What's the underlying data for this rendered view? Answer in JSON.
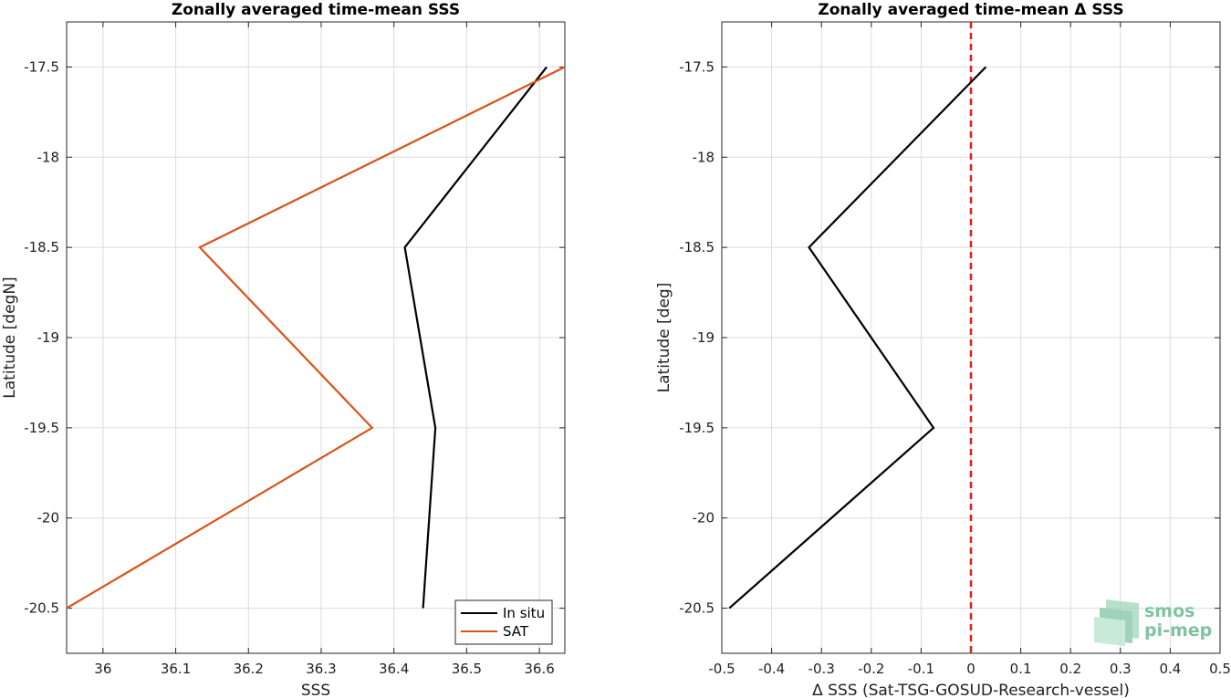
{
  "chart_data": [
    {
      "type": "line",
      "title": "Zonally averaged time-mean SSS",
      "xlabel": "SSS",
      "ylabel": "Latitude [degN]",
      "xlim": [
        35.95,
        36.635
      ],
      "ylim": [
        -20.75,
        -17.25
      ],
      "xticks": [
        36,
        36.1,
        36.2,
        36.3,
        36.4,
        36.5,
        36.6
      ],
      "xtick_labels": [
        "36",
        "36.1",
        "36.2",
        "36.3",
        "36.4",
        "36.5",
        "36.6"
      ],
      "yticks": [
        -17.5,
        -18,
        -18.5,
        -19,
        -19.5,
        -20,
        -20.5
      ],
      "ytick_labels": [
        "-17.5",
        "-18",
        "-18.5",
        "-19",
        "-19.5",
        "-20",
        "-20.5"
      ],
      "grid": true,
      "legend_position": "bottom-right",
      "series": [
        {
          "name": "In situ",
          "color": "#000000",
          "x": [
            36.61,
            36.415,
            36.457,
            36.44
          ],
          "y": [
            -17.5,
            -18.5,
            -19.5,
            -20.5
          ]
        },
        {
          "name": "SAT",
          "color": "#d95319",
          "x": [
            36.635,
            36.133,
            36.37,
            35.95
          ],
          "y": [
            -17.5,
            -18.5,
            -19.5,
            -20.5
          ]
        }
      ]
    },
    {
      "type": "line",
      "title": "Zonally averaged time-mean Δ SSS",
      "xlabel": "Δ SSS (Sat-TSG-GOSUD-Research-vessel)",
      "ylabel": "Latitude [deg]",
      "xlim": [
        -0.5,
        0.5
      ],
      "ylim": [
        -20.75,
        -17.25
      ],
      "xticks": [
        -0.5,
        -0.4,
        -0.3,
        -0.2,
        -0.1,
        0,
        0.1,
        0.2,
        0.3,
        0.4,
        0.5
      ],
      "xtick_labels": [
        "-0.5",
        "-0.4",
        "-0.3",
        "-0.2",
        "-0.1",
        "0",
        "0.1",
        "0.2",
        "0.3",
        "0.4",
        "0.5"
      ],
      "yticks": [
        -17.5,
        -18,
        -18.5,
        -19,
        -19.5,
        -20,
        -20.5
      ],
      "ytick_labels": [
        "-17.5",
        "-18",
        "-18.5",
        "-19",
        "-19.5",
        "-20",
        "-20.5"
      ],
      "grid": true,
      "reference_line": {
        "x": 0,
        "color": "#e41a1c",
        "style": "dashed"
      },
      "series": [
        {
          "color": "#000000",
          "x": [
            0.03,
            -0.325,
            -0.075,
            -0.485
          ],
          "y": [
            -17.5,
            -18.5,
            -19.5,
            -20.5
          ]
        }
      ]
    }
  ],
  "logo": {
    "line1": "smos",
    "line2": "pi-mep",
    "color": "#7fc3a2"
  }
}
